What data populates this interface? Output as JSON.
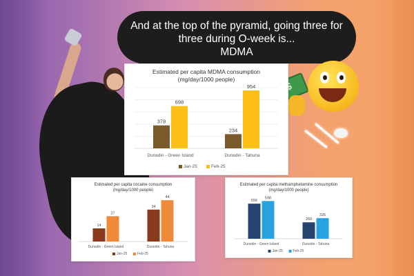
{
  "caption": {
    "line1": "And at the top of the pyramid, going three for",
    "line2": "three during O-week is...",
    "line3": "MDMA"
  },
  "colors": {
    "jan": "#7a5a2b",
    "feb_mdma": "#fbbf16",
    "feb_cocaine": "#ef8a3b",
    "jan_cocaine": "#8a3a1c",
    "jan_meth": "#24446f",
    "feb_meth": "#29a3e0"
  },
  "chart_data": [
    {
      "type": "bar",
      "title": "Estimated per capita MDMA consumption",
      "subtitle": "(mg/day/1000 people)",
      "categories": [
        "Dunedin - Green Island",
        "Dunedin - Tahuna"
      ],
      "series": [
        {
          "name": "Jan-25",
          "values": [
            378,
            234
          ]
        },
        {
          "name": "Feb-25",
          "values": [
            698,
            954
          ]
        }
      ],
      "ylim": [
        0,
        1000
      ],
      "grid": true,
      "legend": "bottom"
    },
    {
      "type": "bar",
      "title": "Estimated per capita cocaine consumption",
      "subtitle": "(mg/day/1000 people)",
      "categories": [
        "Dunedin - Green Island",
        "Dunedin - Tahuna"
      ],
      "series": [
        {
          "name": "Jan-25",
          "values": [
            14,
            34
          ]
        },
        {
          "name": "Feb-25",
          "values": [
            27,
            44
          ]
        }
      ],
      "ylim": [
        0,
        50
      ],
      "grid": false,
      "legend": "bottom"
    },
    {
      "type": "bar",
      "title": "Estimated per capita methamphetamine consumption",
      "subtitle": "(mg/day/1000 people)",
      "categories": [
        "Dunedin - Green Island",
        "Dunedin - Tahuna"
      ],
      "series": [
        {
          "name": "Jan-25",
          "values": [
            556,
            260
          ]
        },
        {
          "name": "Feb-25",
          "values": [
            598,
            326
          ]
        }
      ],
      "ylim": [
        0,
        700
      ],
      "grid": false,
      "legend": "bottom"
    }
  ]
}
